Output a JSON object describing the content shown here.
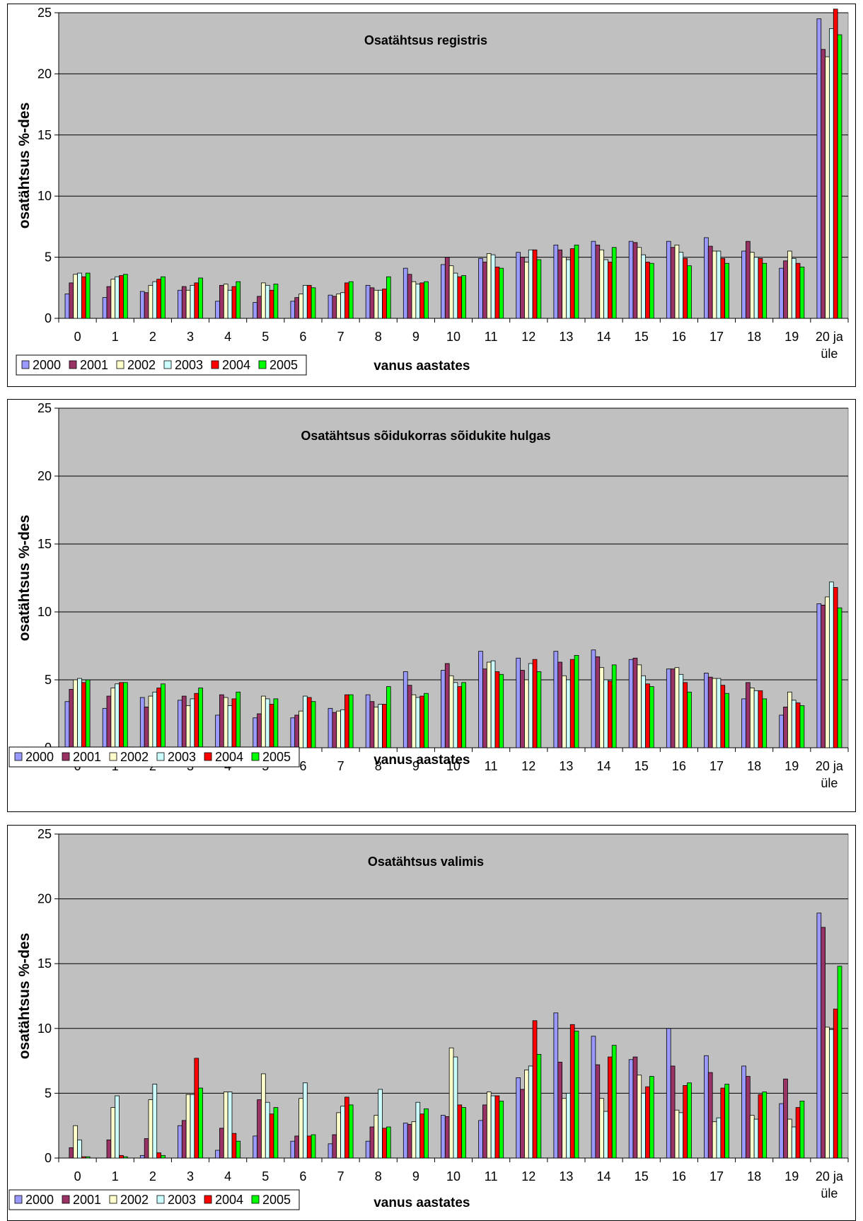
{
  "colors": {
    "plot_background": "#c0c0c0",
    "series": [
      "#9999ff",
      "#993366",
      "#ffffcc",
      "#ccffff",
      "#ff0000",
      "#00ff00"
    ]
  },
  "chart_data": [
    {
      "type": "bar",
      "title": "Osatähtsus registris",
      "xlabel": "vanus aastates",
      "ylabel": "osatähtsus %-des",
      "ylim": [
        0,
        25
      ],
      "yticks": [
        0,
        5,
        10,
        15,
        20,
        25
      ],
      "grid": true,
      "legend_position": "bottom-left",
      "categories": [
        "0",
        "1",
        "2",
        "3",
        "4",
        "5",
        "6",
        "7",
        "8",
        "9",
        "10",
        "11",
        "12",
        "13",
        "14",
        "15",
        "16",
        "17",
        "18",
        "19",
        "20 ja üle"
      ],
      "series": [
        {
          "name": "2000",
          "values": [
            2.0,
            1.7,
            2.2,
            2.3,
            1.4,
            1.3,
            1.4,
            1.9,
            2.7,
            4.1,
            4.4,
            4.9,
            5.4,
            6.0,
            6.3,
            6.3,
            6.3,
            6.6,
            5.5,
            4.1,
            24.5
          ]
        },
        {
          "name": "2001",
          "values": [
            2.9,
            2.6,
            2.1,
            2.6,
            2.7,
            1.8,
            1.7,
            1.8,
            2.5,
            3.6,
            5.0,
            4.6,
            5.0,
            5.6,
            6.0,
            6.2,
            5.8,
            5.9,
            6.3,
            4.7,
            22.0
          ]
        },
        {
          "name": "2002",
          "values": [
            3.6,
            3.2,
            2.7,
            2.3,
            2.8,
            2.9,
            2.0,
            2.0,
            2.3,
            3.0,
            4.3,
            5.3,
            4.6,
            5.0,
            5.6,
            5.8,
            6.0,
            5.5,
            5.4,
            5.5,
            21.4
          ]
        },
        {
          "name": "2003",
          "values": [
            3.7,
            3.4,
            3.0,
            2.7,
            2.3,
            2.7,
            2.7,
            2.1,
            2.3,
            2.8,
            3.7,
            5.2,
            5.6,
            4.8,
            4.8,
            5.2,
            5.4,
            5.5,
            5.0,
            4.9,
            23.7
          ]
        },
        {
          "name": "2004",
          "values": [
            3.4,
            3.5,
            3.2,
            2.9,
            2.6,
            2.3,
            2.7,
            2.9,
            2.4,
            2.9,
            3.4,
            4.2,
            5.6,
            5.7,
            4.6,
            4.6,
            4.9,
            4.9,
            4.9,
            4.5,
            25.3
          ]
        },
        {
          "name": "2005",
          "values": [
            3.7,
            3.6,
            3.4,
            3.3,
            3.0,
            2.8,
            2.5,
            3.0,
            3.4,
            3.0,
            3.5,
            4.1,
            4.8,
            6.0,
            5.8,
            4.5,
            4.3,
            4.5,
            4.5,
            4.2,
            23.2
          ]
        }
      ]
    },
    {
      "type": "bar",
      "title": "Osatähtsus sõidukorras sõidukite hulgas",
      "xlabel": "vanus aastates",
      "ylabel": "osatähtsus %-des",
      "ylim": [
        0,
        25
      ],
      "yticks": [
        0,
        5,
        10,
        15,
        20,
        25
      ],
      "grid": true,
      "legend_position": "bottom-left",
      "categories": [
        "0",
        "1",
        "2",
        "3",
        "4",
        "5",
        "6",
        "7",
        "8",
        "9",
        "10",
        "11",
        "12",
        "13",
        "14",
        "15",
        "16",
        "17",
        "18",
        "19",
        "20 ja üle"
      ],
      "series": [
        {
          "name": "2000",
          "values": [
            3.4,
            2.9,
            3.7,
            3.5,
            2.4,
            2.2,
            2.2,
            2.9,
            3.9,
            5.6,
            5.7,
            7.1,
            6.6,
            7.1,
            7.2,
            6.5,
            5.8,
            5.5,
            3.6,
            2.4,
            10.6
          ]
        },
        {
          "name": "2001",
          "values": [
            4.3,
            3.8,
            3.0,
            3.8,
            3.9,
            2.5,
            2.4,
            2.6,
            3.4,
            4.6,
            6.2,
            5.8,
            5.7,
            6.3,
            6.7,
            6.6,
            5.8,
            5.2,
            4.8,
            3.0,
            10.5
          ]
        },
        {
          "name": "2002",
          "values": [
            5.0,
            4.4,
            3.8,
            3.1,
            3.7,
            3.8,
            2.7,
            2.7,
            3.0,
            3.9,
            5.3,
            6.3,
            5.0,
            5.3,
            5.9,
            6.1,
            5.9,
            5.1,
            4.4,
            4.1,
            11.1
          ]
        },
        {
          "name": "2003",
          "values": [
            5.1,
            4.7,
            4.1,
            3.6,
            3.1,
            3.6,
            3.8,
            2.8,
            3.2,
            3.7,
            4.8,
            6.4,
            6.2,
            5.0,
            5.0,
            5.3,
            5.4,
            5.1,
            4.2,
            3.5,
            12.2
          ]
        },
        {
          "name": "2004",
          "values": [
            4.8,
            4.8,
            4.4,
            4.0,
            3.6,
            3.2,
            3.7,
            3.9,
            3.2,
            3.8,
            4.5,
            5.6,
            6.5,
            6.5,
            4.9,
            4.7,
            4.8,
            4.6,
            4.2,
            3.3,
            11.8
          ]
        },
        {
          "name": "2005",
          "values": [
            5.0,
            4.8,
            4.7,
            4.4,
            4.1,
            3.6,
            3.4,
            3.9,
            4.5,
            4.0,
            4.8,
            5.4,
            5.6,
            6.8,
            6.1,
            4.5,
            4.1,
            4.0,
            3.6,
            3.1,
            10.3
          ]
        }
      ]
    },
    {
      "type": "bar",
      "title": "Osatähtsus valimis",
      "xlabel": "vanus aastates",
      "ylabel": "osatähtsus %-des",
      "ylim": [
        0,
        25
      ],
      "yticks": [
        0,
        5,
        10,
        15,
        20,
        25
      ],
      "grid": true,
      "legend_position": "bottom-left",
      "categories": [
        "0",
        "1",
        "2",
        "3",
        "4",
        "5",
        "6",
        "7",
        "8",
        "9",
        "10",
        "11",
        "12",
        "13",
        "14",
        "15",
        "16",
        "17",
        "18",
        "19",
        "20 ja üle"
      ],
      "series": [
        {
          "name": "2000",
          "values": [
            0.0,
            0.0,
            0.2,
            2.5,
            0.6,
            1.7,
            1.3,
            1.1,
            1.3,
            2.7,
            3.3,
            2.9,
            6.2,
            11.2,
            9.4,
            7.6,
            10.0,
            7.9,
            7.1,
            4.2,
            18.9
          ]
        },
        {
          "name": "2001",
          "values": [
            0.8,
            1.4,
            1.5,
            2.9,
            2.3,
            4.5,
            1.7,
            1.8,
            2.4,
            2.6,
            3.2,
            4.1,
            5.3,
            7.4,
            7.2,
            7.8,
            7.1,
            6.6,
            6.3,
            6.1,
            17.8
          ]
        },
        {
          "name": "2002",
          "values": [
            2.5,
            3.9,
            4.5,
            4.9,
            5.1,
            6.5,
            4.6,
            3.5,
            3.3,
            2.8,
            8.5,
            5.1,
            6.8,
            4.6,
            4.6,
            6.4,
            3.7,
            2.8,
            3.3,
            3.0,
            10.1
          ]
        },
        {
          "name": "2003",
          "values": [
            1.4,
            4.8,
            5.7,
            4.9,
            5.1,
            4.3,
            5.8,
            4.0,
            5.3,
            4.3,
            7.8,
            4.8,
            7.1,
            5.0,
            3.6,
            5.0,
            3.5,
            3.1,
            3.0,
            2.4,
            9.9
          ]
        },
        {
          "name": "2004",
          "values": [
            0.1,
            0.2,
            0.4,
            7.7,
            1.9,
            3.4,
            1.7,
            4.7,
            2.3,
            3.4,
            4.1,
            4.8,
            10.6,
            10.3,
            7.8,
            5.5,
            5.6,
            5.4,
            4.9,
            3.9,
            11.5
          ]
        },
        {
          "name": "2005",
          "values": [
            0.1,
            0.1,
            0.2,
            5.4,
            1.3,
            3.9,
            1.8,
            4.1,
            2.4,
            3.8,
            3.9,
            4.4,
            8.0,
            9.8,
            8.7,
            6.3,
            5.8,
            5.7,
            5.1,
            4.4,
            14.8
          ]
        }
      ]
    }
  ]
}
